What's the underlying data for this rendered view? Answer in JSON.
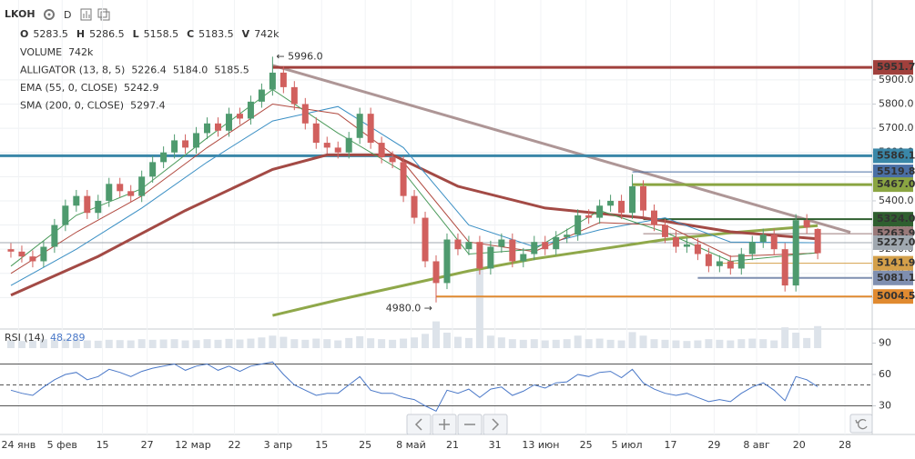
{
  "header": {
    "symbol": "LKOH",
    "interval": "D",
    "ohlcv": [
      {
        "key": "O",
        "value": "5283.5"
      },
      {
        "key": "H",
        "value": "5286.5"
      },
      {
        "key": "L",
        "value": "5158.5"
      },
      {
        "key": "C",
        "value": "5183.5"
      },
      {
        "key": "V",
        "value": "742k"
      }
    ],
    "legend": [
      {
        "name": "VOLUME",
        "values": [
          "742k"
        ],
        "colors": [
          "#8fa3b8"
        ]
      },
      {
        "name": "ALLIGATOR (13, 8, 5)",
        "values": [
          "5226.4",
          "5184.0",
          "5185.5"
        ],
        "colors": [
          "#3a8fc4",
          "#b0483e",
          "#4a9a5a"
        ]
      },
      {
        "name": "EMA (55, 0, CLOSE)",
        "values": [
          "5242.9"
        ],
        "colors": [
          "#a34a45"
        ]
      },
      {
        "name": "SMA (200, 0, CLOSE)",
        "values": [
          "5297.4"
        ],
        "colors": [
          "#8fa84a"
        ]
      }
    ]
  },
  "chart_data": [
    {
      "type": "candlestick",
      "up_color": "#4e9a6e",
      "down_color": "#d1605e",
      "volume_color": "#dde3ea",
      "xlim": [
        -1,
        79
      ],
      "ylim": [
        4791,
        6080
      ],
      "yticks": [
        {
          "value": 5000,
          "label": "5000.0"
        },
        {
          "value": 5100,
          "label": "5100.0"
        },
        {
          "value": 5200,
          "label": "5200.0"
        },
        {
          "value": 5300,
          "label": "5300.0"
        },
        {
          "value": 5400,
          "label": "5400.0"
        },
        {
          "value": 5500,
          "label": "5500.0"
        },
        {
          "value": 5600,
          "label": "5600.0"
        },
        {
          "value": 5700,
          "label": "5700.0"
        },
        {
          "value": 5800,
          "label": "5800.0"
        },
        {
          "value": 5900,
          "label": "5900.0"
        }
      ],
      "xticks": [
        {
          "value": 0.7,
          "label": "24 янв"
        },
        {
          "value": 4.7,
          "label": "5 фев"
        },
        {
          "value": 8.4,
          "label": "15"
        },
        {
          "value": 12.5,
          "label": "27"
        },
        {
          "value": 16.7,
          "label": "12 мар"
        },
        {
          "value": 20.5,
          "label": "22"
        },
        {
          "value": 24.5,
          "label": "3 апр"
        },
        {
          "value": 28.5,
          "label": "15"
        },
        {
          "value": 32.5,
          "label": "25"
        },
        {
          "value": 36.7,
          "label": "8 май"
        },
        {
          "value": 40.5,
          "label": "21"
        },
        {
          "value": 44.4,
          "label": "31"
        },
        {
          "value": 48.6,
          "label": "13 июн"
        },
        {
          "value": 52.75,
          "label": "25"
        },
        {
          "value": 56.5,
          "label": "5 июл"
        },
        {
          "value": 60.5,
          "label": "17"
        },
        {
          "value": 64.5,
          "label": "29"
        },
        {
          "value": 68.4,
          "label": "8 авг"
        },
        {
          "value": 72.3,
          "label": "20"
        },
        {
          "value": 76.5,
          "label": "28"
        }
      ],
      "open": [
        5200,
        5190,
        5170,
        5150,
        5210,
        5300,
        5380,
        5420,
        5350,
        5400,
        5470,
        5440,
        5420,
        5500,
        5560,
        5600,
        5650,
        5620,
        5680,
        5720,
        5690,
        5760,
        5740,
        5810,
        5860,
        5930,
        5870,
        5800,
        5720,
        5640,
        5620,
        5600,
        5660,
        5760,
        5640,
        5580,
        5560,
        5420,
        5330,
        5150,
        5060,
        5240,
        5200,
        5230,
        5120,
        5210,
        5240,
        5150,
        5180,
        5230,
        5200,
        5250,
        5260,
        5340,
        5330,
        5380,
        5400,
        5350,
        5460,
        5360,
        5300,
        5250,
        5210,
        5220,
        5180,
        5130,
        5150,
        5120,
        5180,
        5230,
        5260,
        5200,
        5050,
        5320,
        5283.5
      ],
      "high": [
        5225,
        5215,
        5195,
        5235,
        5325,
        5405,
        5445,
        5445,
        5425,
        5495,
        5495,
        5465,
        5525,
        5585,
        5625,
        5675,
        5675,
        5705,
        5745,
        5745,
        5785,
        5785,
        5835,
        5885,
        5996,
        5955,
        5895,
        5825,
        5745,
        5665,
        5645,
        5685,
        5785,
        5785,
        5665,
        5605,
        5585,
        5445,
        5355,
        5175,
        5265,
        5265,
        5255,
        5255,
        5235,
        5265,
        5265,
        5205,
        5255,
        5255,
        5275,
        5285,
        5365,
        5365,
        5405,
        5425,
        5425,
        5510,
        5485,
        5385,
        5325,
        5275,
        5245,
        5245,
        5205,
        5175,
        5175,
        5205,
        5255,
        5285,
        5285,
        5225,
        5345,
        5345,
        5286.5
      ],
      "low": [
        5165,
        5145,
        5125,
        5125,
        5185,
        5275,
        5355,
        5325,
        5325,
        5375,
        5415,
        5395,
        5395,
        5475,
        5535,
        5575,
        5595,
        5595,
        5655,
        5665,
        5665,
        5715,
        5715,
        5785,
        5835,
        5845,
        5775,
        5695,
        5615,
        5595,
        5575,
        5575,
        5635,
        5615,
        5555,
        5535,
        5395,
        5305,
        5125,
        4980,
        5035,
        5175,
        5175,
        5095,
        5095,
        5185,
        5125,
        5125,
        5155,
        5175,
        5175,
        5225,
        5235,
        5305,
        5305,
        5355,
        5325,
        5325,
        5335,
        5275,
        5225,
        5185,
        5185,
        5155,
        5105,
        5105,
        5095,
        5095,
        5155,
        5205,
        5175,
        5025,
        5025,
        5265,
        5158.5
      ],
      "close": [
        5190,
        5170,
        5150,
        5210,
        5300,
        5380,
        5420,
        5350,
        5400,
        5470,
        5440,
        5420,
        5500,
        5560,
        5600,
        5650,
        5620,
        5680,
        5720,
        5690,
        5760,
        5740,
        5810,
        5860,
        5930,
        5870,
        5800,
        5720,
        5640,
        5620,
        5600,
        5660,
        5760,
        5640,
        5580,
        5560,
        5420,
        5330,
        5150,
        5060,
        5240,
        5200,
        5230,
        5120,
        5210,
        5240,
        5150,
        5180,
        5230,
        5200,
        5250,
        5260,
        5340,
        5330,
        5380,
        5400,
        5350,
        5460,
        5360,
        5300,
        5250,
        5210,
        5220,
        5180,
        5130,
        5150,
        5120,
        5180,
        5230,
        5260,
        5200,
        5050,
        5320,
        5290,
        5183.5
      ],
      "volume": [
        260,
        240,
        250,
        300,
        280,
        320,
        300,
        260,
        250,
        280,
        270,
        260,
        300,
        280,
        290,
        300,
        260,
        270,
        300,
        280,
        310,
        290,
        320,
        360,
        420,
        380,
        300,
        280,
        320,
        300,
        260,
        340,
        400,
        330,
        300,
        280,
        320,
        360,
        480,
        900,
        520,
        380,
        340,
        3000,
        420,
        360,
        300,
        280,
        300,
        260,
        280,
        300,
        420,
        300,
        320,
        280,
        260,
        540,
        420,
        300,
        280,
        260,
        240,
        260,
        300,
        280,
        260,
        300,
        320,
        300,
        260,
        700,
        520,
        340,
        742
      ],
      "indicators": [
        {
          "color": "#8fa84a",
          "width": 3,
          "x": [
            24,
            30,
            36,
            42,
            48,
            54,
            60,
            66,
            72,
            74
          ],
          "values": [
            4926,
            4990,
            5050,
            5110,
            5160,
            5200,
            5240,
            5268,
            5290,
            5297.4
          ]
        },
        {
          "color": "#a34a45",
          "width": 3,
          "x": [
            0,
            8,
            16,
            24,
            29,
            35,
            41,
            49,
            58,
            66,
            74
          ],
          "values": [
            5010,
            5170,
            5360,
            5530,
            5590,
            5590,
            5460,
            5370,
            5330,
            5272,
            5242.9
          ]
        },
        {
          "color": "#3a8fc4",
          "width": 1,
          "x": [
            0,
            6,
            12,
            18,
            24,
            30,
            36,
            42,
            48,
            54,
            60,
            66,
            74
          ],
          "values": [
            5050,
            5200,
            5370,
            5560,
            5730,
            5790,
            5620,
            5300,
            5210,
            5280,
            5330,
            5230,
            5226.4
          ]
        },
        {
          "color": "#b0483e",
          "width": 1,
          "x": [
            0,
            6,
            12,
            18,
            24,
            30,
            36,
            42,
            48,
            54,
            60,
            66,
            74
          ],
          "values": [
            5100,
            5270,
            5420,
            5620,
            5800,
            5760,
            5560,
            5230,
            5190,
            5310,
            5300,
            5170,
            5184.0
          ]
        },
        {
          "color": "#4a9a5a",
          "width": 1,
          "x": [
            0,
            6,
            12,
            18,
            24,
            30,
            36,
            42,
            48,
            54,
            60,
            66,
            74
          ],
          "values": [
            5130,
            5340,
            5450,
            5660,
            5860,
            5680,
            5520,
            5180,
            5200,
            5360,
            5270,
            5150,
            5185.5
          ]
        }
      ],
      "levels": [
        {
          "value": 5951.7,
          "label": "5951.7",
          "color": "#a0403c",
          "from": 24,
          "width": 3
        },
        {
          "value": 5586.1,
          "label": "5586.1",
          "color": "#3a87a8",
          "from": -1,
          "width": 3
        },
        {
          "value": 5519.8,
          "label": "5519.8",
          "color": "#4a6fa5",
          "from": 57,
          "width": 1
        },
        {
          "value": 5467,
          "label": "5467.0",
          "color": "#8aa542",
          "from": 57,
          "width": 3
        },
        {
          "value": 5324,
          "label": "5324.0",
          "color": "#2f5f2f",
          "from": 58,
          "width": 2
        },
        {
          "value": 5263.9,
          "label": "5263.9",
          "color": "#9a7a7a",
          "from": 58,
          "width": 1
        },
        {
          "value": 5227,
          "label": "5227.0",
          "color": "#a0a8b0",
          "from": -1,
          "width": 1
        },
        {
          "value": 5141.9,
          "label": "5141.9",
          "color": "#d4a04a",
          "from": 65,
          "width": 1
        },
        {
          "value": 5081.1,
          "label": "5081.1",
          "color": "#7f8fb0",
          "from": 63,
          "width": 2
        },
        {
          "value": 5004.5,
          "label": "5004.5",
          "color": "#e08a30",
          "from": 39,
          "width": 2
        }
      ],
      "trendline": {
        "from": [
          24,
          5960
        ],
        "to": [
          77,
          5270
        ],
        "color": "#a08484"
      },
      "annotations": [
        {
          "text": "← 5996.0",
          "x": 24,
          "y": 5996,
          "anchor": "start"
        },
        {
          "text": "4980.0 →",
          "x": 39,
          "y": 4980,
          "anchor": "end"
        }
      ]
    },
    {
      "type": "line",
      "title": "RSI (14)",
      "value_label": "48.289",
      "color": "#4a78c8",
      "xlim": [
        -1,
        79
      ],
      "ylim": [
        9.6,
        100
      ],
      "yticks": [
        90,
        60,
        30
      ],
      "levels": [
        70,
        50,
        30
      ],
      "values": [
        45,
        42,
        40,
        48,
        55,
        60,
        62,
        55,
        58,
        65,
        62,
        58,
        63,
        66,
        68,
        70,
        64,
        68,
        70,
        64,
        68,
        63,
        68,
        70,
        72,
        60,
        50,
        45,
        40,
        42,
        42,
        50,
        58,
        45,
        42,
        42,
        38,
        36,
        30,
        25,
        45,
        42,
        46,
        38,
        46,
        48,
        40,
        44,
        50,
        47,
        52,
        53,
        60,
        58,
        62,
        63,
        57,
        65,
        52,
        46,
        42,
        40,
        42,
        38,
        34,
        36,
        34,
        42,
        48,
        52,
        45,
        35,
        58,
        55,
        48.289
      ]
    }
  ]
}
